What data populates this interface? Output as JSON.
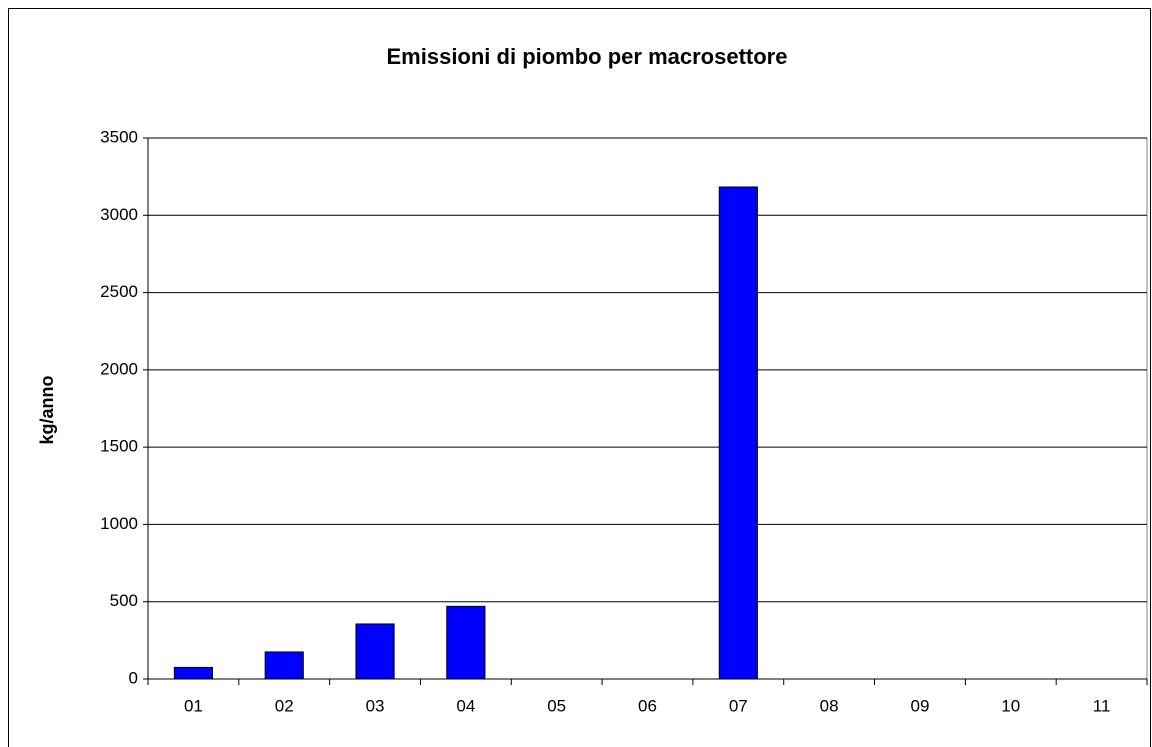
{
  "chart_data": {
    "type": "bar",
    "title": "Emissioni di piombo per macrosettore",
    "y_label": "kg/anno",
    "categories": [
      "01",
      "02",
      "03",
      "04",
      "05",
      "06",
      "07",
      "08",
      "09",
      "10",
      "11"
    ],
    "values": [
      75,
      175,
      356,
      470,
      0,
      0,
      3183,
      0,
      0,
      0,
      0
    ],
    "color": "#0000ff",
    "ylim": [
      0,
      3500
    ],
    "yticks": [
      0,
      500,
      1000,
      1500,
      2000,
      2500,
      3000,
      3500
    ],
    "grid": true
  }
}
